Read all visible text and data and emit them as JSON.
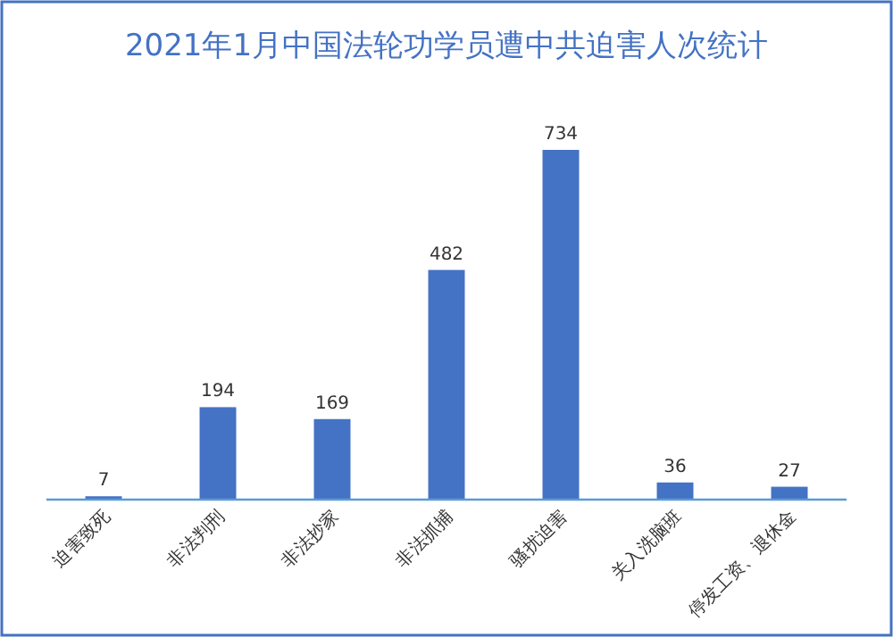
{
  "chart_data": {
    "type": "bar",
    "title": "2021年1月中国法轮功学员遭中共迫害人次统计",
    "categories": [
      "迫害致死",
      "非法判刑",
      "非法抄家",
      "非法抓捕",
      "骚扰迫害",
      "关入洗脑班",
      "停发工资、退休金"
    ],
    "values": [
      7,
      194,
      169,
      482,
      734,
      36,
      27
    ],
    "color": "#4472c4",
    "data_labels": true
  }
}
